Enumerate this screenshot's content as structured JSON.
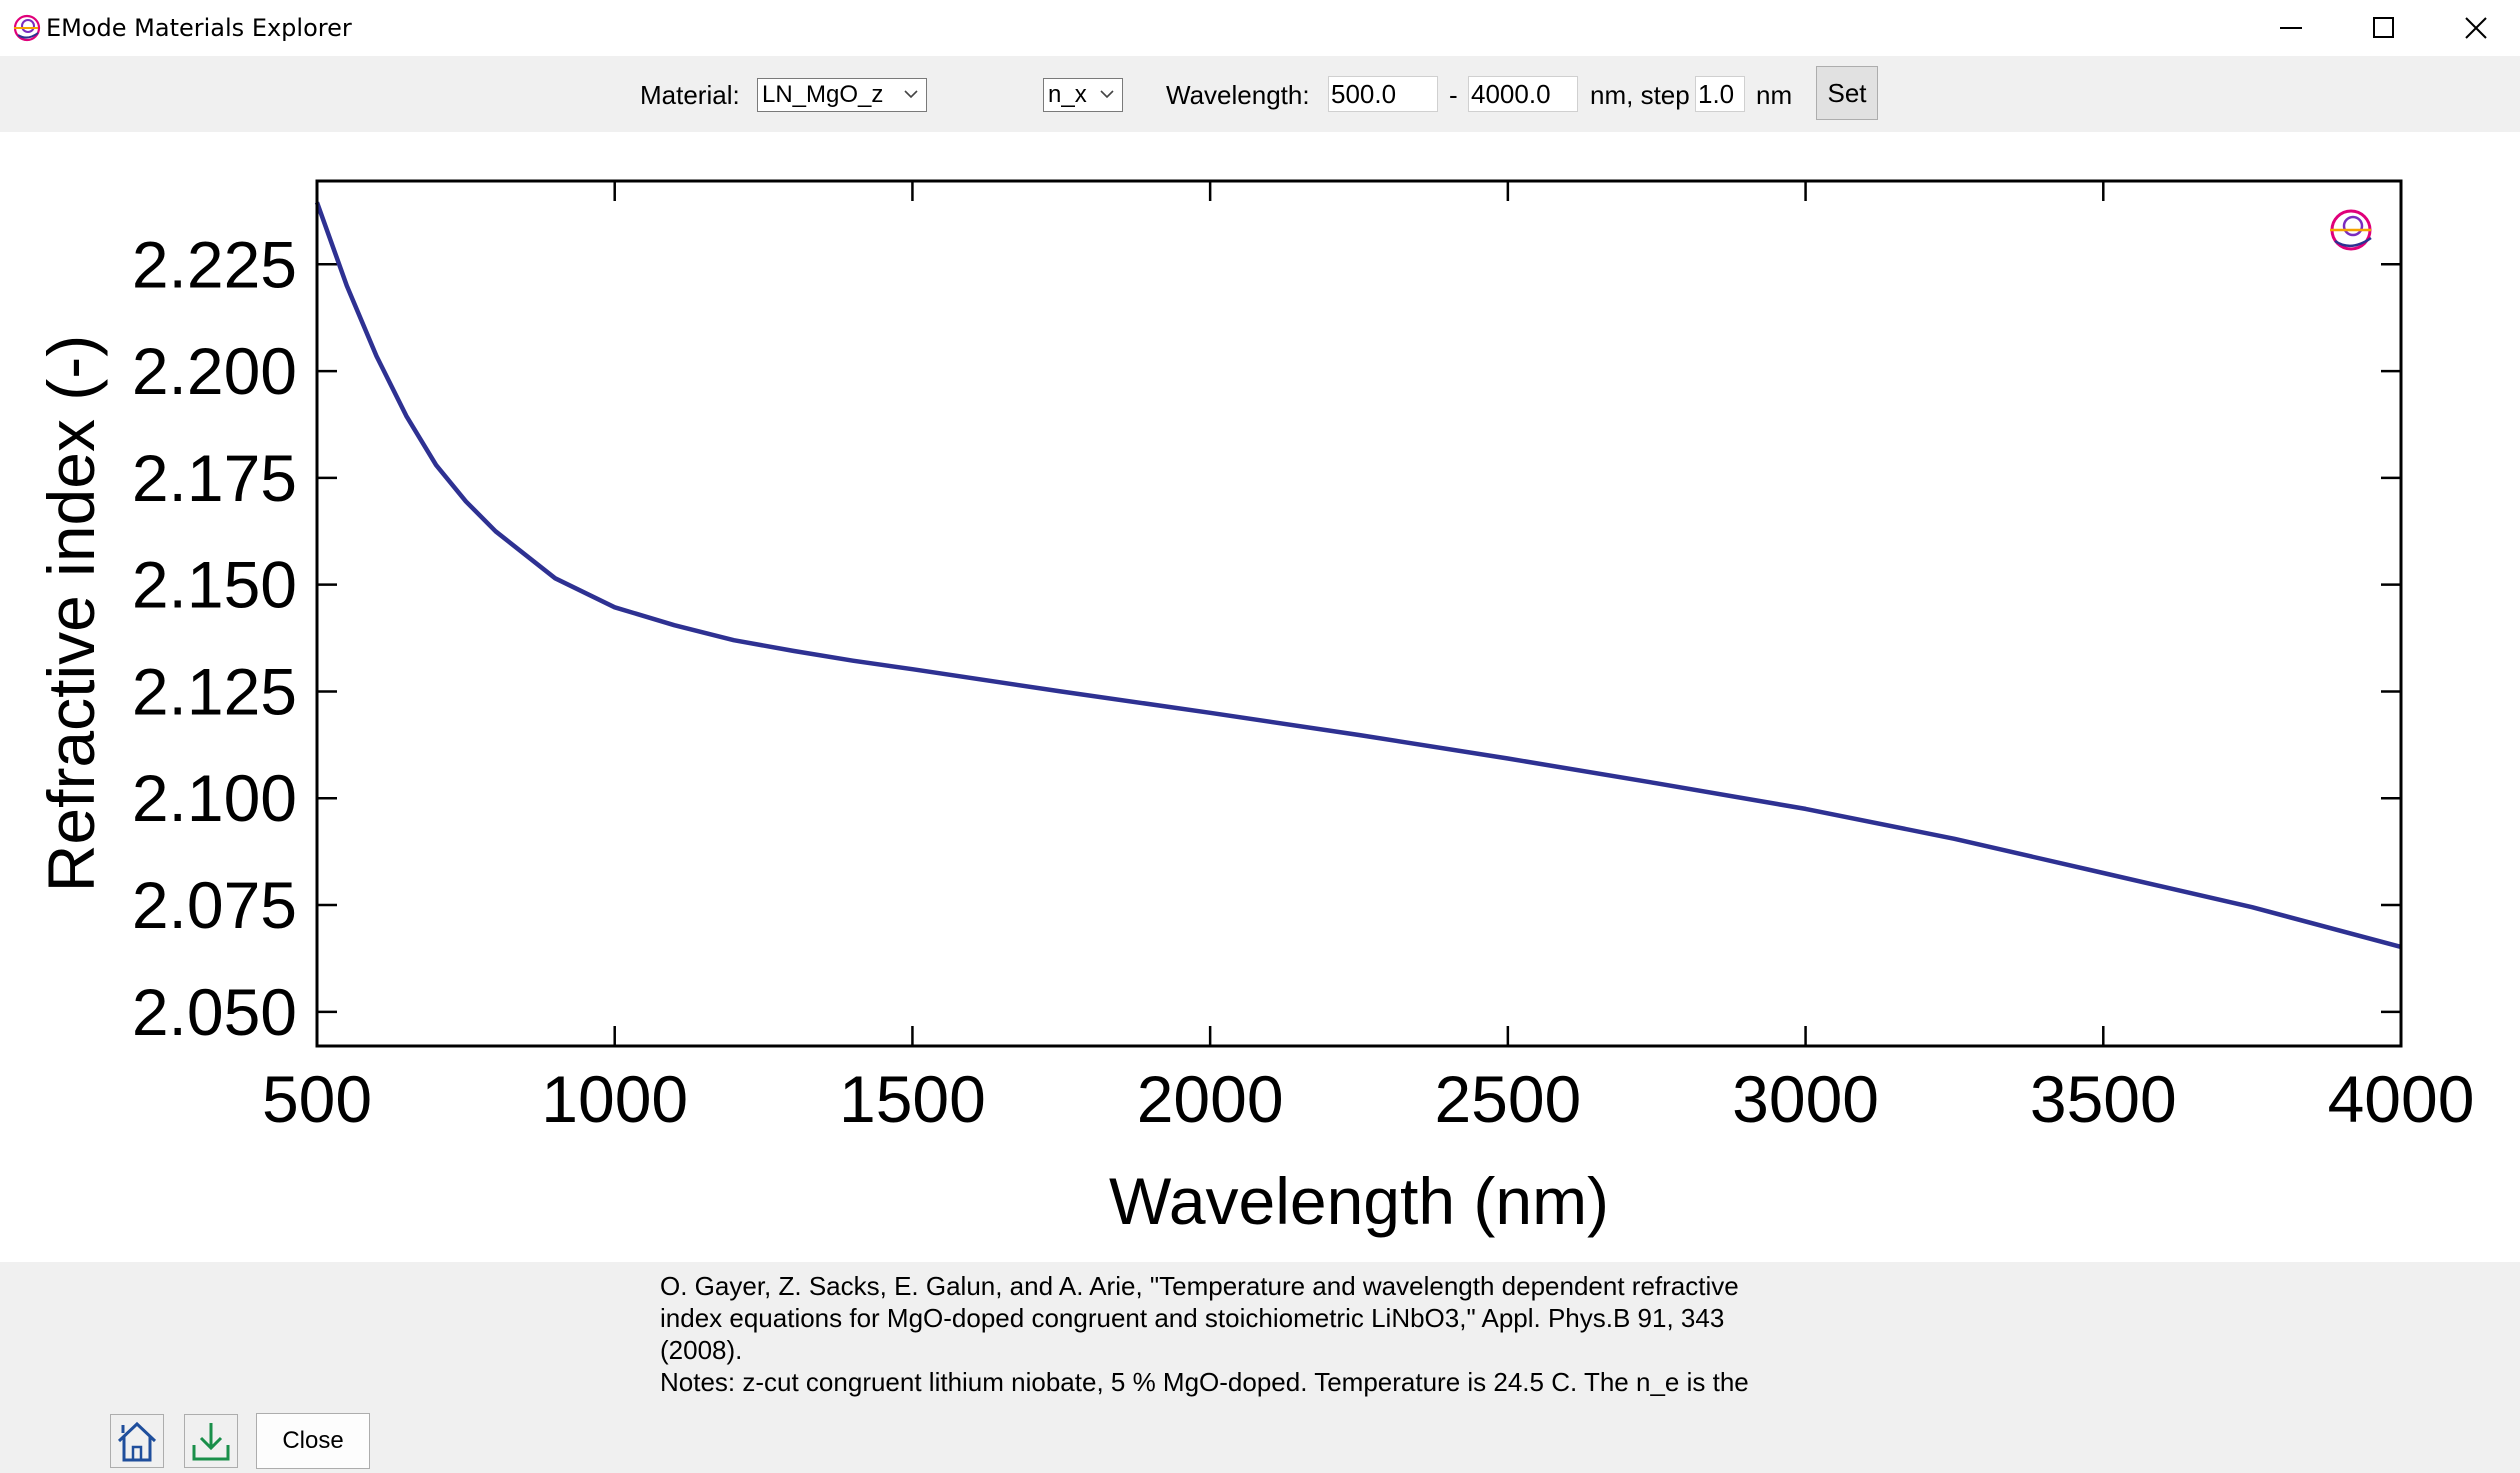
{
  "window": {
    "title": "EMode Materials Explorer",
    "controls": [
      "minimize-icon",
      "maximize-icon",
      "close-icon"
    ]
  },
  "toolbar": {
    "material_label": "Material:",
    "material_value": "LN_MgO_z",
    "component_value": "n_x",
    "wavelength_label": "Wavelength:",
    "wl_min": "500.0",
    "dash": "-",
    "wl_max": "4000.0",
    "nm_step_label": "nm, step",
    "step": "1.0",
    "nm_label": "nm",
    "set_label": "Set"
  },
  "chart_data": {
    "type": "line",
    "xlabel": "Wavelength (nm)",
    "ylabel": "Refractive index (-)",
    "xlim": [
      500,
      4000
    ],
    "ylim": [
      2.042,
      2.2445
    ],
    "x_ticks": [
      500,
      1000,
      1500,
      2000,
      2500,
      3000,
      3500,
      4000
    ],
    "x_tick_labels": [
      "500",
      "1000",
      "1500",
      "2000",
      "2500",
      "3000",
      "3500",
      "4000"
    ],
    "y_ticks": [
      2.05,
      2.075,
      2.1,
      2.125,
      2.15,
      2.175,
      2.2,
      2.225
    ],
    "y_tick_labels": [
      "2.050",
      "2.075",
      "2.100",
      "2.125",
      "2.150",
      "2.175",
      "2.200",
      "2.225"
    ],
    "grid": false,
    "line_color": "#2e3192",
    "series": [
      {
        "x": [
          500,
          550,
          600,
          650,
          700,
          750,
          800,
          900,
          1000,
          1100,
          1200,
          1300,
          1400,
          1500,
          1750,
          2000,
          2250,
          2500,
          2750,
          3000,
          3250,
          3500,
          3750,
          4000
        ],
        "y": [
          2.2395,
          2.22,
          2.2035,
          2.1895,
          2.178,
          2.1695,
          2.1625,
          2.1515,
          2.1447,
          2.1405,
          2.137,
          2.1345,
          2.1322,
          2.1302,
          2.125,
          2.12,
          2.1148,
          2.1093,
          2.1035,
          2.0975,
          2.0905,
          2.0825,
          2.0745,
          2.0652
        ]
      }
    ]
  },
  "reference": {
    "line1": "O. Gayer, Z. Sacks, E. Galun, and A. Arie, \"Temperature and wavelength dependent refractive",
    "line2": "index equations for MgO-doped congruent and stoichiometric LiNbO3,\" Appl. Phys.B 91, 343",
    "line3": "(2008).",
    "line4": "Notes: z-cut congruent lithium niobate, 5 % MgO-doped. Temperature is 24.5 C. The n_e is the"
  },
  "bottom_buttons": {
    "home_icon": "home-icon",
    "save_icon": "download-icon",
    "close_label": "Close"
  }
}
